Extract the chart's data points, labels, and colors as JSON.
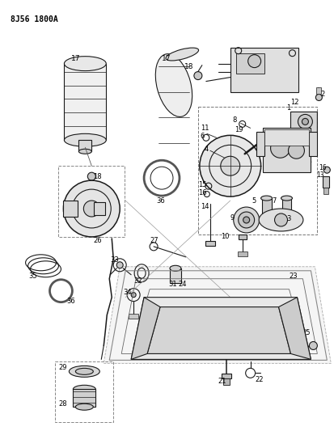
{
  "title": "8J56 1800A",
  "bg_color": "#ffffff",
  "lc": "#1a1a1a",
  "fig_width": 4.13,
  "fig_height": 5.33,
  "dpi": 100
}
